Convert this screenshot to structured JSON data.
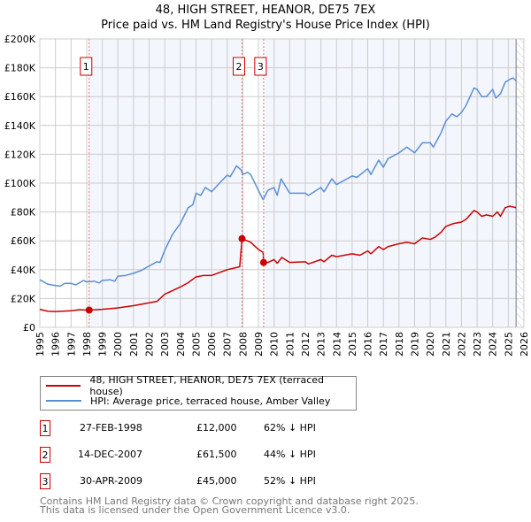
{
  "title": "48, HIGH STREET, HEANOR, DE75 7EX",
  "subtitle": "Price paid vs. HM Land Registry's House Price Index (HPI)",
  "chart_data": {
    "type": "line",
    "title": "48, HIGH STREET, HEANOR, DE75 7EX",
    "subtitle": "Price paid vs. HM Land Registry's House Price Index (HPI)",
    "xlim": [
      1995,
      2026
    ],
    "ylim": [
      0,
      200000
    ],
    "grid": true,
    "x_ticks": [
      "1995",
      "1996",
      "1997",
      "1998",
      "1999",
      "2000",
      "2001",
      "2002",
      "2003",
      "2004",
      "2005",
      "2006",
      "2007",
      "2008",
      "2009",
      "2010",
      "2011",
      "2012",
      "2013",
      "2014",
      "2015",
      "2016",
      "2017",
      "2018",
      "2019",
      "2020",
      "2021",
      "2022",
      "2023",
      "2024",
      "2025",
      "2026"
    ],
    "y_ticks": [
      {
        "v": 0,
        "label": "£0"
      },
      {
        "v": 20000,
        "label": "£20K"
      },
      {
        "v": 40000,
        "label": "£40K"
      },
      {
        "v": 60000,
        "label": "£60K"
      },
      {
        "v": 80000,
        "label": "£80K"
      },
      {
        "v": 100000,
        "label": "£100K"
      },
      {
        "v": 120000,
        "label": "£120K"
      },
      {
        "v": 140000,
        "label": "£140K"
      },
      {
        "v": 160000,
        "label": "£160K"
      },
      {
        "v": 180000,
        "label": "£180K"
      },
      {
        "v": 200000,
        "label": "£200K"
      }
    ],
    "legend_placement": "below",
    "series": [
      {
        "name": "48, HIGH STREET, HEANOR, DE75 7EX (terraced house)",
        "color": "#cc0000",
        "points": [
          [
            1995,
            12500
          ],
          [
            1995.5,
            11200
          ],
          [
            1996,
            11000
          ],
          [
            1997,
            11500
          ],
          [
            1997.5,
            12200
          ],
          [
            1998.16,
            12000
          ],
          [
            1999,
            12500
          ],
          [
            2000,
            13500
          ],
          [
            2001,
            15000
          ],
          [
            2002,
            17000
          ],
          [
            2002.5,
            18000
          ],
          [
            2003,
            23000
          ],
          [
            2003.5,
            25500
          ],
          [
            2004,
            28000
          ],
          [
            2004.5,
            31000
          ],
          [
            2005,
            35000
          ],
          [
            2005.5,
            36000
          ],
          [
            2006,
            36000
          ],
          [
            2006.5,
            38000
          ],
          [
            2007,
            40000
          ],
          [
            2007.8,
            42000
          ],
          [
            2007.95,
            61500
          ],
          [
            2008.5,
            59000
          ],
          [
            2009,
            54000
          ],
          [
            2009.3,
            52000
          ],
          [
            2009.33,
            45000
          ],
          [
            2009.6,
            45000
          ],
          [
            2010,
            47000
          ],
          [
            2010.2,
            44500
          ],
          [
            2010.5,
            48500
          ],
          [
            2011,
            45000
          ],
          [
            2012,
            45500
          ],
          [
            2012.2,
            44000
          ],
          [
            2013,
            47000
          ],
          [
            2013.2,
            45500
          ],
          [
            2013.7,
            50000
          ],
          [
            2014,
            49000
          ],
          [
            2015,
            51000
          ],
          [
            2015.5,
            50000
          ],
          [
            2016,
            53000
          ],
          [
            2016.2,
            51000
          ],
          [
            2016.7,
            56000
          ],
          [
            2017,
            54000
          ],
          [
            2017.3,
            56000
          ],
          [
            2018,
            58000
          ],
          [
            2018.5,
            59000
          ],
          [
            2019,
            58000
          ],
          [
            2019.5,
            62000
          ],
          [
            2020,
            61000
          ],
          [
            2020.3,
            62500
          ],
          [
            2020.7,
            66000
          ],
          [
            2021,
            70000
          ],
          [
            2021.5,
            72000
          ],
          [
            2022,
            73000
          ],
          [
            2022.3,
            75000
          ],
          [
            2022.8,
            81000
          ],
          [
            2023,
            80000
          ],
          [
            2023.3,
            77000
          ],
          [
            2023.6,
            78000
          ],
          [
            2024,
            77000
          ],
          [
            2024.3,
            80000
          ],
          [
            2024.5,
            77000
          ],
          [
            2024.8,
            83000
          ],
          [
            2025.1,
            84000
          ],
          [
            2025.5,
            83000
          ]
        ]
      },
      {
        "name": "HPI: Average price, terraced house, Amber Valley",
        "color": "#5b8fd4",
        "points": [
          [
            1995,
            33000
          ],
          [
            1995.5,
            30000
          ],
          [
            1996,
            29000
          ],
          [
            1996.3,
            28500
          ],
          [
            1996.6,
            30500
          ],
          [
            1997,
            30500
          ],
          [
            1997.3,
            29500
          ],
          [
            1997.8,
            32500
          ],
          [
            1998,
            31500
          ],
          [
            1998.5,
            32000
          ],
          [
            1998.8,
            30800
          ],
          [
            1999,
            32500
          ],
          [
            1999.5,
            33000
          ],
          [
            1999.8,
            32000
          ],
          [
            2000,
            35500
          ],
          [
            2000.5,
            36000
          ],
          [
            2001,
            37500
          ],
          [
            2001.5,
            39500
          ],
          [
            2002,
            42500
          ],
          [
            2002.5,
            45500
          ],
          [
            2002.7,
            45000
          ],
          [
            2003,
            53500
          ],
          [
            2003.5,
            64500
          ],
          [
            2004,
            72000
          ],
          [
            2004.5,
            83000
          ],
          [
            2004.8,
            85000
          ],
          [
            2005,
            93000
          ],
          [
            2005.3,
            91500
          ],
          [
            2005.6,
            97000
          ],
          [
            2006,
            94000
          ],
          [
            2006.5,
            100000
          ],
          [
            2007,
            105500
          ],
          [
            2007.2,
            104500
          ],
          [
            2007.6,
            112000
          ],
          [
            2007.9,
            109000
          ],
          [
            2008,
            106000
          ],
          [
            2008.3,
            107500
          ],
          [
            2008.5,
            106000
          ],
          [
            2009,
            95000
          ],
          [
            2009.3,
            88500
          ],
          [
            2009.6,
            95000
          ],
          [
            2010,
            97000
          ],
          [
            2010.2,
            91500
          ],
          [
            2010.45,
            103000
          ],
          [
            2011,
            93000
          ],
          [
            2012,
            93000
          ],
          [
            2012.2,
            91500
          ],
          [
            2013,
            97000
          ],
          [
            2013.2,
            94000
          ],
          [
            2013.7,
            103000
          ],
          [
            2014,
            99000
          ],
          [
            2015,
            105000
          ],
          [
            2015.3,
            104000
          ],
          [
            2016,
            110000
          ],
          [
            2016.2,
            106000
          ],
          [
            2016.7,
            116000
          ],
          [
            2017,
            111000
          ],
          [
            2017.3,
            117000
          ],
          [
            2018,
            121000
          ],
          [
            2018.5,
            125000
          ],
          [
            2019,
            121000
          ],
          [
            2019.5,
            128000
          ],
          [
            2020,
            128000
          ],
          [
            2020.2,
            125000
          ],
          [
            2020.7,
            135000
          ],
          [
            2021,
            143000
          ],
          [
            2021.4,
            148000
          ],
          [
            2021.7,
            146000
          ],
          [
            2022,
            149000
          ],
          [
            2022.3,
            154000
          ],
          [
            2022.8,
            166000
          ],
          [
            2023,
            165000
          ],
          [
            2023.3,
            160000
          ],
          [
            2023.6,
            160000
          ],
          [
            2024,
            165000
          ],
          [
            2024.2,
            159000
          ],
          [
            2024.5,
            162000
          ],
          [
            2024.8,
            170000
          ],
          [
            2025.1,
            172000
          ],
          [
            2025.3,
            173000
          ],
          [
            2025.5,
            171000
          ]
        ]
      }
    ],
    "sales": [
      {
        "n": "1",
        "x": 1998.16,
        "price": 12000
      },
      {
        "n": "2",
        "x": 2007.95,
        "price": 61500
      },
      {
        "n": "3",
        "x": 2009.33,
        "price": 45000
      }
    ],
    "shaded_ranges": [
      [
        1998.16,
        2007.95
      ],
      [
        2009.33,
        2025.5
      ]
    ],
    "forecast_from": 2025.5
  },
  "legend": {
    "property": "48, HIGH STREET, HEANOR, DE75 7EX (terraced house)",
    "hpi": "HPI: Average price, terraced house, Amber Valley"
  },
  "sales_table": [
    {
      "n": "1",
      "date": "27-FEB-1998",
      "price": "£12,000",
      "hpi": "62% ↓ HPI"
    },
    {
      "n": "2",
      "date": "14-DEC-2007",
      "price": "£61,500",
      "hpi": "44% ↓ HPI"
    },
    {
      "n": "3",
      "date": "30-APR-2009",
      "price": "£45,000",
      "hpi": "52% ↓ HPI"
    }
  ],
  "footer": {
    "line1": "Contains HM Land Registry data © Crown copyright and database right 2025.",
    "line2": "This data is licensed under the Open Government Licence v3.0."
  }
}
